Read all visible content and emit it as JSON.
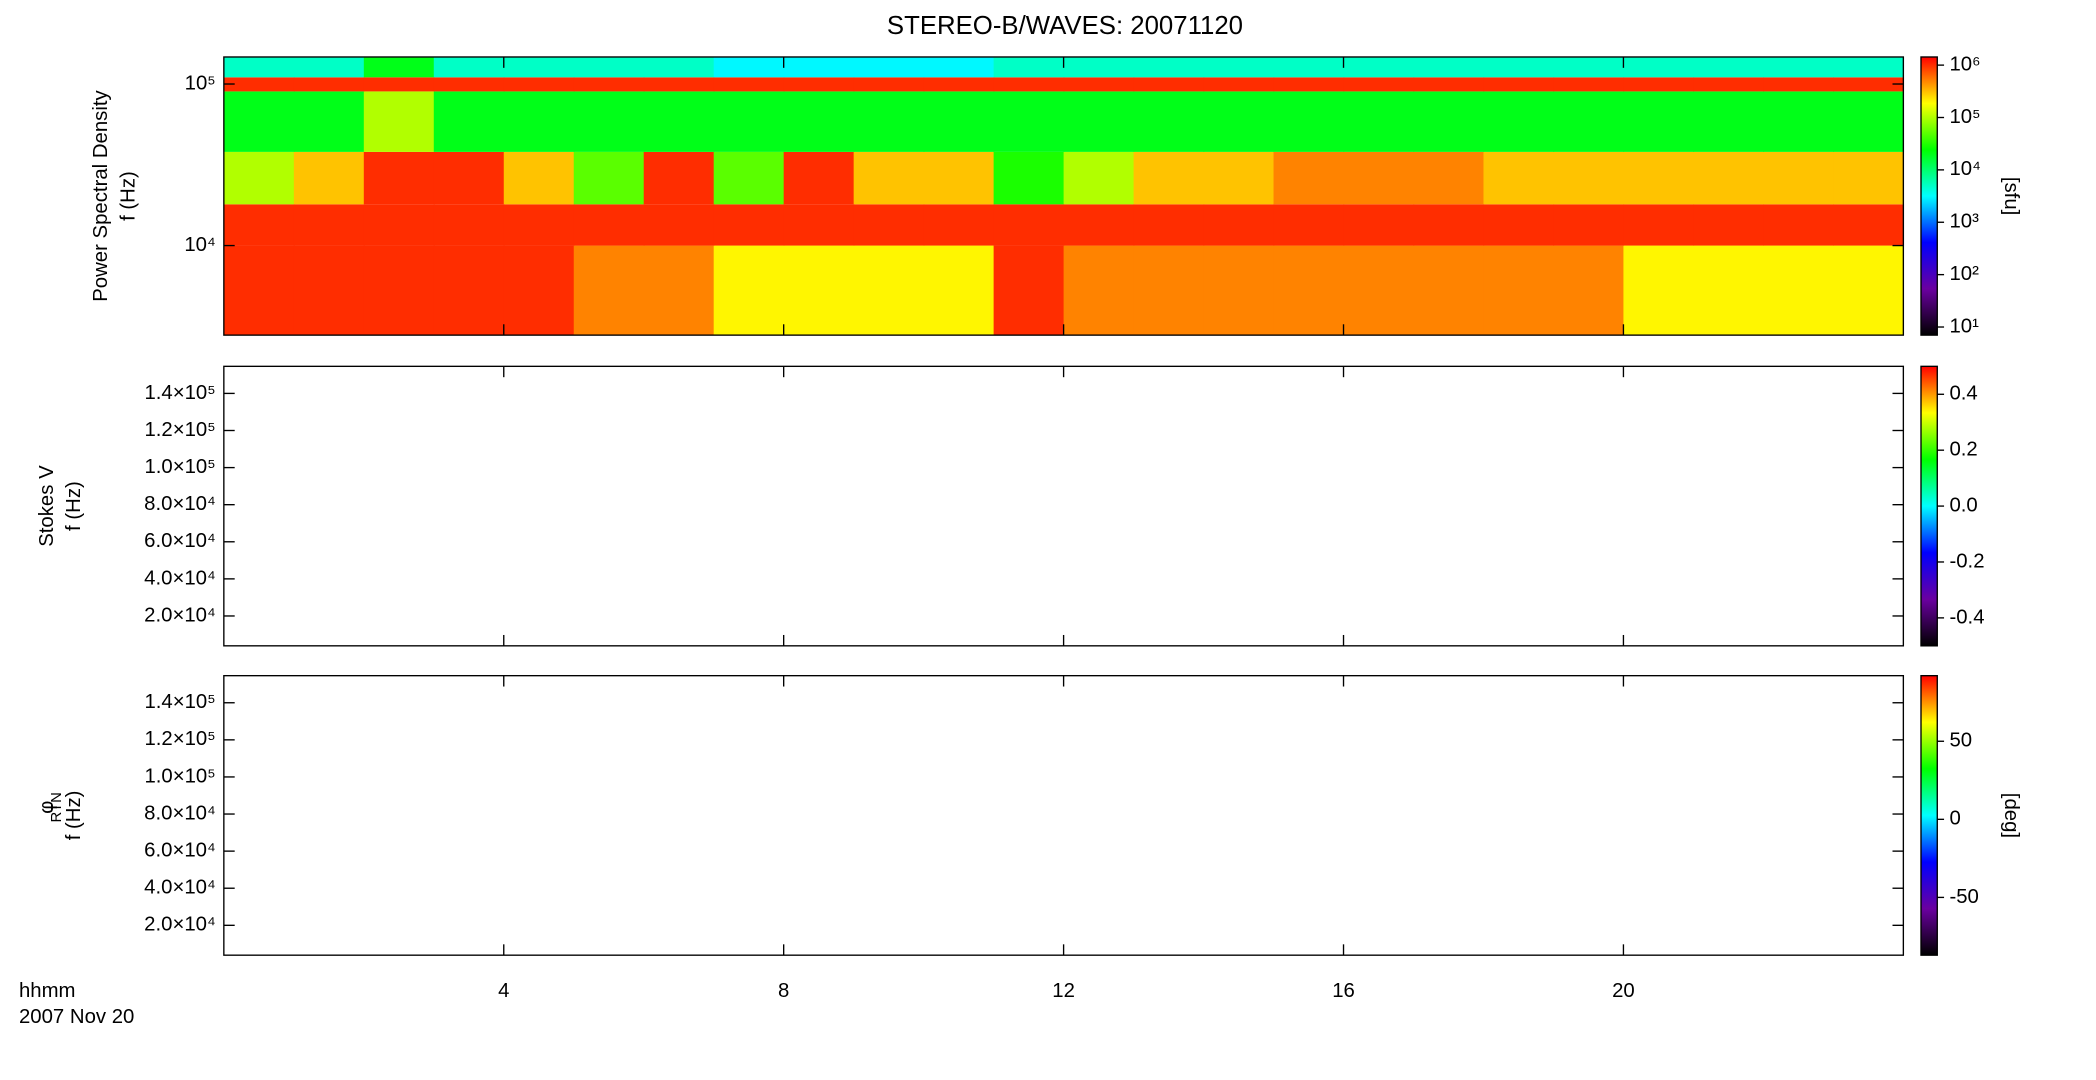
{
  "title": "STEREO-B/WAVES: 20071120",
  "x_axis_label": "hhmm",
  "date_label": "2007 Nov 20",
  "chart_data": [
    {
      "type": "heatmap",
      "ylabel": [
        "Power Spectral Density",
        "f (Hz)"
      ],
      "y_scale": "log",
      "xlim": [
        0,
        24
      ],
      "xticks": [
        {
          "value": 4,
          "label": "0400"
        },
        {
          "value": 8,
          "label": "0800"
        },
        {
          "value": 12,
          "label": "1200"
        },
        {
          "value": 16,
          "label": "1600"
        },
        {
          "value": 20,
          "label": "2000"
        }
      ],
      "ylim": [
        2790,
        147000
      ],
      "yticks": [
        {
          "value": 10000,
          "label": "10⁴"
        },
        {
          "value": 100000,
          "label": "10⁵"
        }
      ],
      "x_bins": [
        0,
        1,
        2,
        3,
        4,
        5,
        6,
        7,
        8,
        9,
        10,
        11,
        12,
        13,
        14,
        15,
        16,
        17,
        18,
        19,
        20,
        21,
        22,
        23,
        24
      ],
      "y_bins": [
        2790,
        10000,
        18000,
        38000,
        90000,
        110000,
        147000
      ],
      "values": [
        [
          1000000,
          1000000,
          1000000,
          1000000,
          1000000,
          500000,
          500000,
          200000,
          200000,
          200000,
          200000,
          1000000,
          500000,
          500000,
          500000,
          500000,
          500000,
          500000,
          500000,
          500000,
          200000,
          200000,
          200000,
          200000
        ],
        [
          1000000,
          1000000,
          1000000,
          1000000,
          1000000,
          1000000,
          1000000,
          1000000,
          1000000,
          1000000,
          1000000,
          1000000,
          1000000,
          1000000,
          1000000,
          1000000,
          1000000,
          1000000,
          1000000,
          1000000,
          1000000,
          1000000,
          1000000,
          1000000
        ],
        [
          100000,
          300000,
          1000000,
          1000000,
          300000,
          50000,
          1000000,
          50000,
          1000000,
          300000,
          300000,
          30000,
          100000,
          300000,
          300000,
          500000,
          500000,
          500000,
          300000,
          300000,
          300000,
          300000,
          300000,
          300000
        ],
        [
          20000,
          20000,
          100000,
          20000,
          20000,
          20000,
          20000,
          20000,
          20000,
          20000,
          20000,
          20000,
          20000,
          20000,
          20000,
          20000,
          20000,
          20000,
          20000,
          20000,
          20000,
          20000,
          20000,
          20000
        ],
        [
          1000000,
          1000000,
          1000000,
          1000000,
          1000000,
          1000000,
          1000000,
          1000000,
          1000000,
          1000000,
          1000000,
          1000000,
          1000000,
          1000000,
          1000000,
          1000000,
          1000000,
          1000000,
          1000000,
          1000000,
          1000000,
          1000000,
          1000000,
          1000000
        ],
        [
          5000,
          5000,
          20000,
          5000,
          5000,
          5000,
          5000,
          3000,
          3000,
          3000,
          3000,
          5000,
          5000,
          5000,
          5000,
          5000,
          5000,
          5000,
          5000,
          5000,
          5000,
          5000,
          5000,
          5000
        ]
      ],
      "colormap": [
        "#000000",
        "#6a00a0",
        "#0000ff",
        "#00ffff",
        "#00ff00",
        "#ffff00",
        "#ff0000"
      ],
      "colorbar": {
        "scale": "log",
        "lim": [
          7,
          1430000
        ],
        "label": "[sfu]",
        "ticks": [
          {
            "value": 10,
            "label": "10¹"
          },
          {
            "value": 100,
            "label": "10²"
          },
          {
            "value": 1000,
            "label": "10³"
          },
          {
            "value": 10000,
            "label": "10⁴"
          },
          {
            "value": 100000,
            "label": "10⁵"
          },
          {
            "value": 1000000,
            "label": "10⁶"
          }
        ]
      }
    },
    {
      "type": "heatmap",
      "ylabel": [
        "Stokes V",
        "f (Hz)"
      ],
      "y_scale": "linear",
      "xlim": [
        0,
        24
      ],
      "xticks": [
        4,
        8,
        12,
        16,
        20
      ],
      "ylim": [
        3900,
        154600
      ],
      "yticks": [
        {
          "value": 20000,
          "label": "2.0×10⁴"
        },
        {
          "value": 40000,
          "label": "4.0×10⁴"
        },
        {
          "value": 60000,
          "label": "6.0×10⁴"
        },
        {
          "value": 80000,
          "label": "8.0×10⁴"
        },
        {
          "value": 100000,
          "label": "1.0×10⁵"
        },
        {
          "value": 120000,
          "label": "1.2×10⁵"
        },
        {
          "value": 140000,
          "label": "1.4×10⁵"
        }
      ],
      "colormap": [
        "#000000",
        "#6a00a0",
        "#0000ff",
        "#00ffff",
        "#00ff00",
        "#ffff00",
        "#ff0000"
      ],
      "colorbar": {
        "scale": "linear",
        "lim": [
          -0.5,
          0.5
        ],
        "ticks": [
          -0.4,
          -0.2,
          {
            "value": 0,
            "label": "0.0"
          },
          0.2,
          0.4
        ]
      }
    },
    {
      "type": "heatmap",
      "ylabel": [
        "φ",
        "f (Hz)"
      ],
      "ylabel_subscript": "RTN",
      "y_scale": "linear",
      "xlim": [
        0,
        24
      ],
      "xticks": [
        4,
        8,
        12,
        16,
        20
      ],
      "ylim": [
        3900,
        154600
      ],
      "yticks": [
        {
          "value": 20000,
          "label": "2.0×10⁴"
        },
        {
          "value": 40000,
          "label": "4.0×10⁴"
        },
        {
          "value": 60000,
          "label": "6.0×10⁴"
        },
        {
          "value": 80000,
          "label": "8.0×10⁴"
        },
        {
          "value": 100000,
          "label": "1.0×10⁵"
        },
        {
          "value": 120000,
          "label": "1.2×10⁵"
        },
        {
          "value": 140000,
          "label": "1.4×10⁵"
        }
      ],
      "colormap": [
        "#000000",
        "#6a00a0",
        "#0000ff",
        "#00ffff",
        "#00ff00",
        "#ffff00",
        "#ff0000"
      ],
      "colorbar": {
        "scale": "linear",
        "lim": [
          -87,
          92
        ],
        "label": "[deg]",
        "ticks": [
          -50,
          0,
          50
        ]
      }
    }
  ]
}
